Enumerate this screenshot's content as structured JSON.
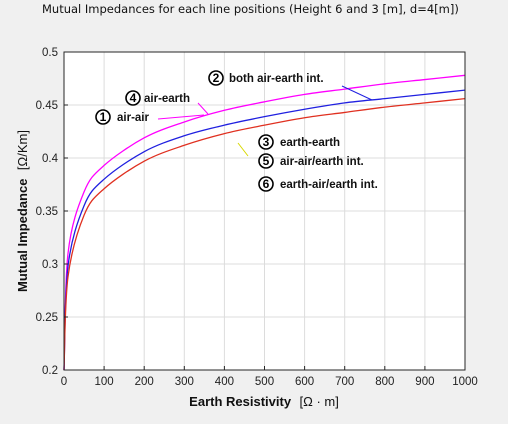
{
  "chart_data": {
    "type": "line",
    "title": "Mutual Impedances for each line positions  (Height 6 and 3 [m], d=4[m])",
    "xlabel": "Earth Resistivity",
    "xunit": "[Ω · m]",
    "ylabel": "Mutual Impedance",
    "yunit": "[Ω/Km]",
    "xlim": [
      0,
      1000
    ],
    "ylim": [
      0.2,
      0.5
    ],
    "xticks": [
      "0",
      "100",
      "200",
      "300",
      "400",
      "500",
      "600",
      "700",
      "800",
      "900",
      "1000"
    ],
    "yticks": [
      "0.2",
      "0.25",
      "0.3",
      "0.35",
      "0.4",
      "0.45",
      "0.5"
    ],
    "grid": true,
    "colors": {
      "magenta": "#ff00ff",
      "blue": "#2020e0",
      "red": "#e03020",
      "yellow": "#d8d800",
      "background": "#f0f0f0",
      "axes": "#ffffff",
      "gridline": "#dcdcdc"
    },
    "series": [
      {
        "color": "#ff00ff",
        "x": [
          0,
          10,
          50,
          100,
          200,
          300,
          400,
          500,
          600,
          700,
          800,
          900,
          1000
        ],
        "y": [
          0.2,
          0.31,
          0.368,
          0.393,
          0.419,
          0.434,
          0.445,
          0.453,
          0.46,
          0.465,
          0.47,
          0.474,
          0.478
        ]
      },
      {
        "color": "#2020e0",
        "x": [
          0,
          10,
          50,
          100,
          200,
          300,
          400,
          500,
          600,
          700,
          800,
          900,
          1000
        ],
        "y": [
          0.2,
          0.298,
          0.355,
          0.38,
          0.406,
          0.421,
          0.431,
          0.439,
          0.446,
          0.452,
          0.456,
          0.46,
          0.464
        ]
      },
      {
        "color": "#e03020",
        "x": [
          0,
          10,
          50,
          100,
          200,
          300,
          400,
          500,
          600,
          700,
          800,
          900,
          1000
        ],
        "y": [
          0.2,
          0.288,
          0.346,
          0.371,
          0.397,
          0.412,
          0.423,
          0.431,
          0.438,
          0.443,
          0.448,
          0.452,
          0.456
        ]
      }
    ],
    "annotations": [
      {
        "num": "1",
        "text": "air-air"
      },
      {
        "num": "2",
        "text": "both  air-earth int."
      },
      {
        "num": "3",
        "text": "earth-earth"
      },
      {
        "num": "4",
        "text": "air-earth"
      },
      {
        "num": "5",
        "text": "air-air/earth int."
      },
      {
        "num": "6",
        "text": "earth-air/earth int."
      }
    ]
  }
}
